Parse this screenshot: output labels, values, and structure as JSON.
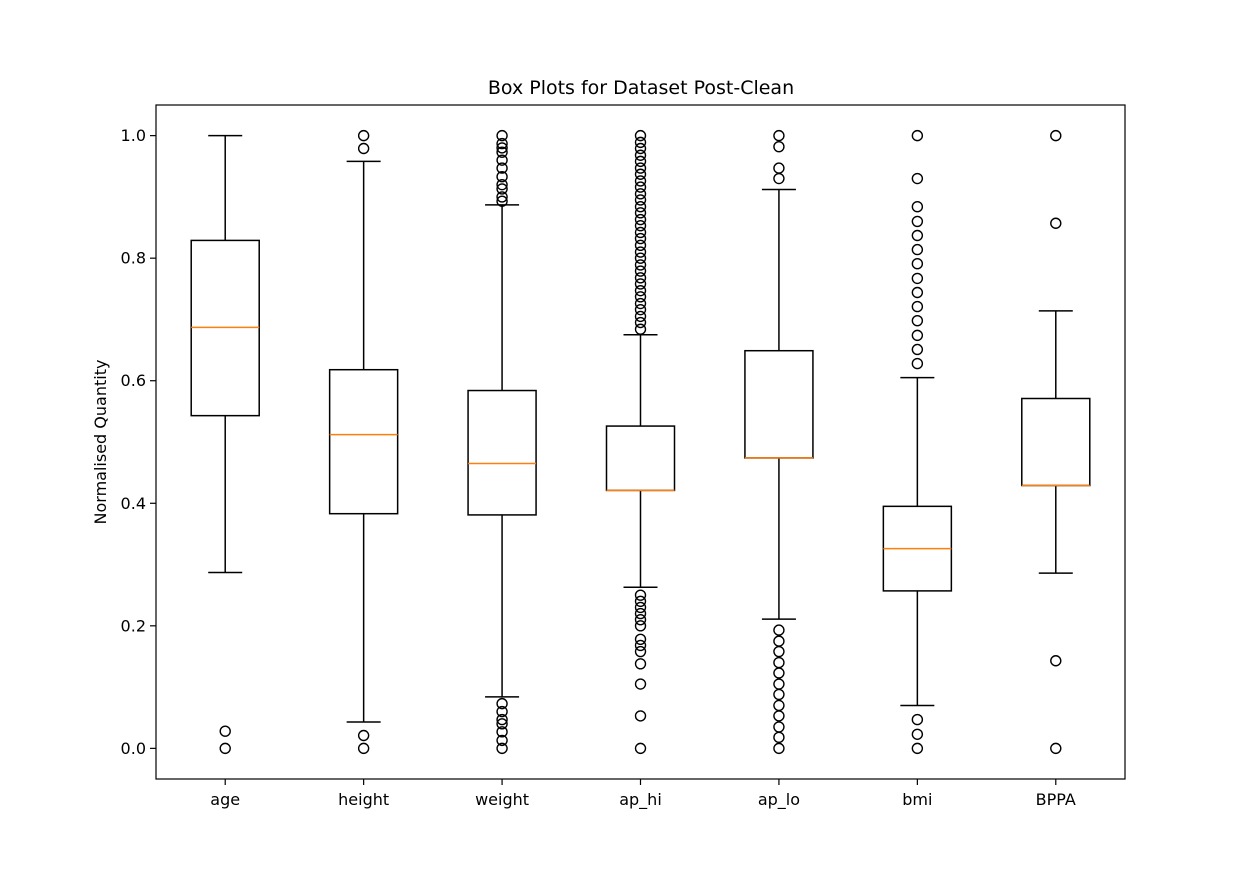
{
  "chart_data": {
    "type": "box",
    "title": "Box Plots for Dataset Post-Clean",
    "xlabel": "",
    "ylabel": "Normalised Quantity",
    "ylim": [
      -0.05,
      1.05
    ],
    "yticks": [
      "0.0",
      "0.2",
      "0.4",
      "0.6",
      "0.8",
      "1.0"
    ],
    "grid": false,
    "colors": {
      "box": "#000000",
      "median": "#ff7f0e",
      "flier": "#000000"
    },
    "categories": [
      "age",
      "height",
      "weight",
      "ap_hi",
      "ap_lo",
      "bmi",
      "BPPA"
    ],
    "boxes": [
      {
        "name": "age",
        "whisker_low": 0.287,
        "q1": 0.543,
        "median": 0.687,
        "q3": 0.829,
        "whisker_high": 1.0,
        "fliers": [
          0.0,
          0.028
        ]
      },
      {
        "name": "height",
        "whisker_low": 0.043,
        "q1": 0.383,
        "median": 0.512,
        "q3": 0.618,
        "whisker_high": 0.958,
        "fliers": [
          0.0,
          0.021,
          0.979,
          1.0
        ]
      },
      {
        "name": "weight",
        "whisker_low": 0.084,
        "q1": 0.381,
        "median": 0.465,
        "q3": 0.584,
        "whisker_high": 0.887,
        "fliers": [
          0.0,
          0.013,
          0.027,
          0.04,
          0.047,
          0.06,
          0.073,
          0.893,
          0.9,
          0.913,
          0.92,
          0.933,
          0.947,
          0.96,
          0.973,
          0.98,
          0.987,
          1.0
        ]
      },
      {
        "name": "ap_hi",
        "whisker_low": 0.263,
        "q1": 0.421,
        "median": 0.421,
        "q3": 0.526,
        "whisker_high": 0.675,
        "fliers": [
          0.0,
          0.053,
          0.105,
          0.138,
          0.158,
          0.168,
          0.178,
          0.2,
          0.21,
          0.22,
          0.23,
          0.24,
          0.25,
          0.684,
          0.695,
          0.705,
          0.716,
          0.726,
          0.737,
          0.747,
          0.758,
          0.768,
          0.779,
          0.789,
          0.8,
          0.81,
          0.821,
          0.832,
          0.842,
          0.853,
          0.863,
          0.874,
          0.884,
          0.895,
          0.905,
          0.916,
          0.926,
          0.937,
          0.947,
          0.958,
          0.968,
          0.979,
          0.989,
          1.0
        ]
      },
      {
        "name": "ap_lo",
        "whisker_low": 0.211,
        "q1": 0.474,
        "median": 0.474,
        "q3": 0.649,
        "whisker_high": 0.912,
        "fliers": [
          0.0,
          0.018,
          0.035,
          0.053,
          0.07,
          0.088,
          0.105,
          0.123,
          0.14,
          0.158,
          0.175,
          0.193,
          0.93,
          0.947,
          0.982,
          1.0
        ]
      },
      {
        "name": "bmi",
        "whisker_low": 0.07,
        "q1": 0.257,
        "median": 0.326,
        "q3": 0.395,
        "whisker_high": 0.605,
        "fliers": [
          0.0,
          0.023,
          0.047,
          0.628,
          0.651,
          0.674,
          0.698,
          0.721,
          0.744,
          0.767,
          0.791,
          0.814,
          0.837,
          0.86,
          0.884,
          0.93,
          1.0
        ]
      },
      {
        "name": "BPPA",
        "whisker_low": 0.286,
        "q1": 0.429,
        "median": 0.429,
        "q3": 0.571,
        "whisker_high": 0.714,
        "fliers": [
          0.0,
          0.143,
          0.857,
          1.0
        ]
      }
    ]
  }
}
